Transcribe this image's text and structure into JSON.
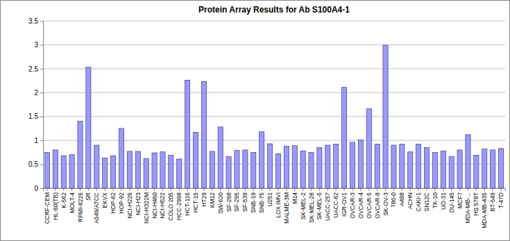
{
  "chart_data": {
    "type": "bar",
    "title": "Protein Array Results for Ab S100A4-1",
    "categories": [
      "CCRF-CEM",
      "HL-60(TB)",
      "K-562",
      "MOLT-4",
      "RPMI-8226",
      "SR",
      "A549/ATCC",
      "EKVX",
      "HOP-62",
      "HOP-92",
      "NCI-H226",
      "NCI-H23",
      "NCI-H322M",
      "NCI-H460",
      "NCI-H522",
      "COLO 205",
      "HCC-2998",
      "HCT-116",
      "HCT-15",
      "HT29",
      "KM12",
      "SW-620",
      "SF-268",
      "SF-295",
      "SF-539",
      "SNB-19",
      "SNB-75",
      "U251",
      "LOX IMVI",
      "MALME-3M",
      "M14",
      "SK-MEL-2",
      "SK-MEL-28",
      "SK-MEL-5",
      "UACC-257",
      "UACC-62",
      "IGR-OV1",
      "OVCAR-3",
      "OVCAR-4",
      "OVCAR-5",
      "OVCAR-8",
      "SK-OV-3",
      "786-0",
      "A498",
      "ACHN",
      "CAKI-1",
      "SN12C",
      "TK-10",
      "UO-31",
      "DU-145",
      "MCF7",
      "MDA-MB-...",
      "HS 578T",
      "MDA-MB-435",
      "BT-549",
      "T-47D"
    ],
    "values": [
      0.75,
      0.8,
      0.68,
      0.7,
      1.4,
      2.53,
      0.9,
      0.63,
      0.68,
      1.25,
      0.77,
      0.77,
      0.62,
      0.74,
      0.76,
      0.69,
      0.61,
      2.26,
      1.17,
      2.23,
      0.77,
      1.28,
      0.66,
      0.79,
      0.8,
      0.75,
      1.18,
      0.93,
      0.72,
      0.88,
      0.89,
      0.78,
      0.75,
      0.85,
      0.9,
      0.92,
      2.11,
      0.96,
      1.01,
      1.66,
      0.92,
      2.99,
      0.9,
      0.92,
      0.76,
      0.92,
      0.85,
      0.75,
      0.78,
      0.66,
      0.8,
      1.12,
      0.69,
      0.82,
      0.8,
      0.83
    ],
    "color": "#9999ff",
    "ylim": [
      0,
      3.5
    ],
    "yticks": [
      0,
      0.5,
      1,
      1.5,
      2,
      2.5,
      3,
      3.5
    ],
    "grid": true
  }
}
